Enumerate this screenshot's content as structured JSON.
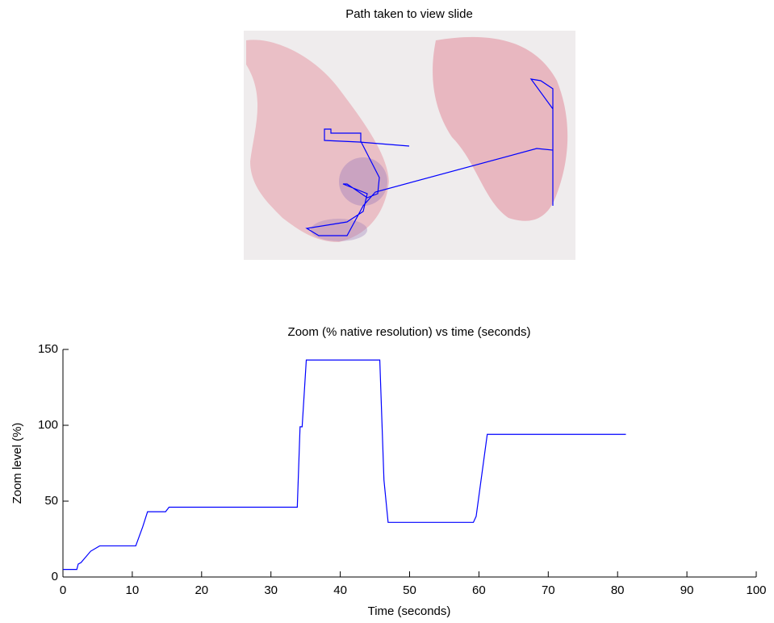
{
  "chart_data": [
    {
      "type": "image",
      "title": "Path taken to view slide"
    },
    {
      "type": "line",
      "title": "Zoom (% native resolution) vs time (seconds)",
      "x_label": "Time (seconds)",
      "y_label": "Zoom level (%)",
      "color": "#0000ff",
      "x": [
        0,
        2,
        2.2,
        2.6,
        4,
        5.3,
        10.5,
        11.5,
        12.2,
        14.8,
        15.3,
        33.8,
        34.2,
        34.5,
        35.1,
        45.7,
        46.3,
        46.9,
        59.2,
        59.6,
        61.2,
        81.2
      ],
      "values": [
        5,
        5,
        8.5,
        9.5,
        17,
        20.5,
        20.5,
        33,
        43,
        43,
        46,
        46,
        99,
        99,
        143,
        143,
        64,
        36,
        36,
        40,
        94,
        94
      ],
      "xlim": [
        0,
        100
      ],
      "xticks": [
        0,
        10,
        20,
        30,
        40,
        50,
        60,
        70,
        80,
        90,
        100
      ],
      "ylim": [
        0,
        150
      ],
      "yticks": [
        0,
        50,
        100,
        150
      ]
    }
  ]
}
